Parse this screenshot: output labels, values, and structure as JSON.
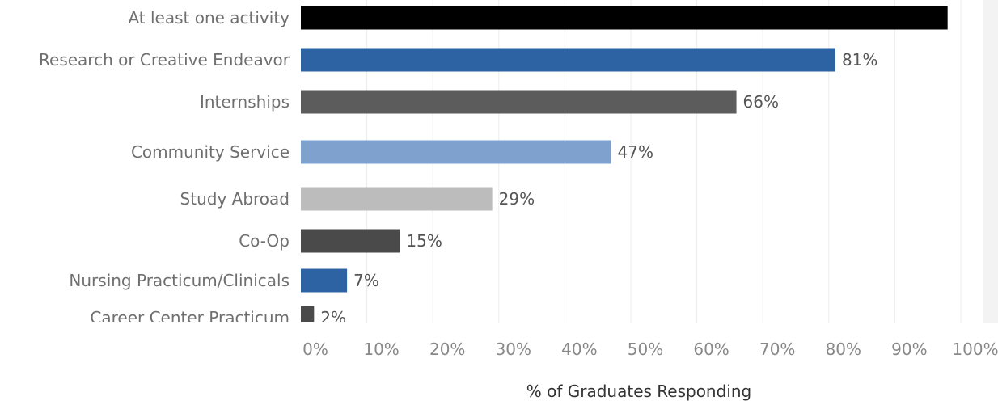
{
  "chart_data": {
    "type": "bar",
    "orientation": "horizontal",
    "categories": [
      "At least one activity",
      "Research or Creative Endeavor",
      "Internships",
      "Community Service",
      "Study Abroad",
      "Co-Op",
      "Nursing Practicum/Clinicals",
      "Career Center Practicum"
    ],
    "values": [
      98,
      81,
      66,
      47,
      29,
      15,
      7,
      2
    ],
    "value_labels": [
      "",
      "81%",
      "66%",
      "47%",
      "29%",
      "15%",
      "7%",
      "2%"
    ],
    "bar_colors": [
      "#000000",
      "#2e63a3",
      "#5c5c5c",
      "#7ea1cd",
      "#bcbcbc",
      "#4a4a4a",
      "#2e63a3",
      "#4a4a4a"
    ],
    "xlabel": "% of Graduates Responding",
    "ylabel": "",
    "title": "",
    "xlim": [
      0,
      100
    ],
    "x_ticks": [
      0,
      10,
      20,
      30,
      40,
      50,
      60,
      70,
      80,
      90,
      100
    ],
    "x_tick_labels": [
      "0%",
      "10%",
      "20%",
      "30%",
      "40%",
      "50%",
      "60%",
      "70%",
      "80%",
      "90%",
      "100%"
    ],
    "grid": true,
    "legend": "none"
  }
}
